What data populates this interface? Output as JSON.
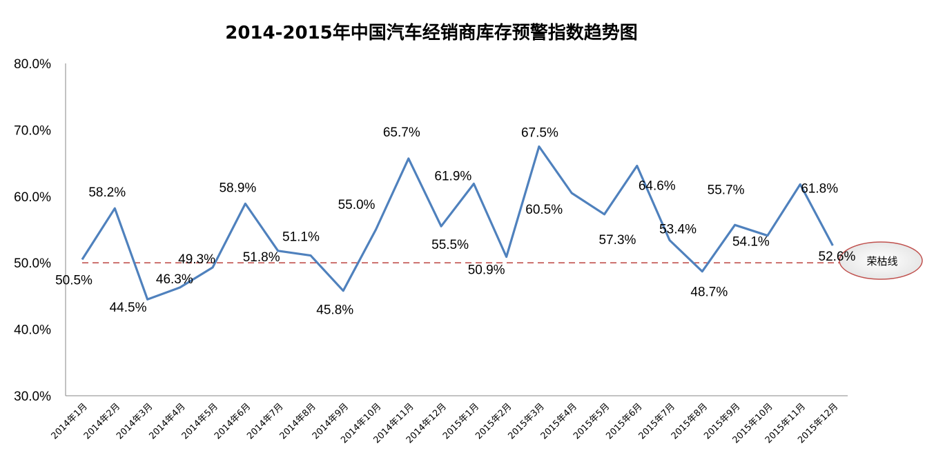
{
  "chart_data": {
    "type": "line",
    "title": "2014-2015年中国汽车经销商库存预警指数趋势图",
    "categories": [
      "2014年1月",
      "2014年2月",
      "2014年3月",
      "2014年4月",
      "2014年5月",
      "2014年6月",
      "2014年7月",
      "2014年8月",
      "2014年9月",
      "2014年10月",
      "2014年11月",
      "2014年12月",
      "2015年1月",
      "2015年2月",
      "2015年3月",
      "2015年4月",
      "2015年5月",
      "2015年6月",
      "2015年7月",
      "2015年8月",
      "2015年9月",
      "2015年10月",
      "2015年11月",
      "2015年12月"
    ],
    "values": [
      50.5,
      58.2,
      44.5,
      46.3,
      49.3,
      58.9,
      51.8,
      51.1,
      45.8,
      55.0,
      65.7,
      55.5,
      61.9,
      50.9,
      67.5,
      60.5,
      57.3,
      64.6,
      53.4,
      48.7,
      55.7,
      54.1,
      61.8,
      52.6
    ],
    "value_labels": [
      "50.5%",
      "58.2%",
      "44.5%",
      "46.3%",
      "49.3%",
      "58.9%",
      "51.8%",
      "51.1%",
      "45.8%",
      "55.0%",
      "65.7%",
      "55.5%",
      "61.9%",
      "50.9%",
      "67.5%",
      "60.5%",
      "57.3%",
      "64.6%",
      "53.4%",
      "48.7%",
      "55.7%",
      "54.1%",
      "61.8%",
      "52.6%"
    ],
    "yticks": [
      "30.0%",
      "40.0%",
      "50.0%",
      "60.0%",
      "70.0%",
      "80.0%"
    ],
    "ylim": [
      30,
      80
    ],
    "grid": false,
    "line_color": "#4f81bd",
    "reference_line": {
      "value": 50,
      "label": "荣枯线",
      "color": "#c0504d"
    }
  }
}
